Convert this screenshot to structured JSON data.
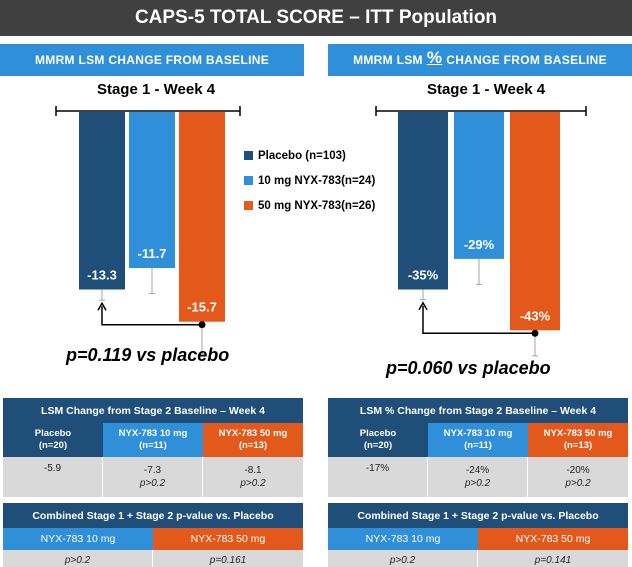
{
  "title": "CAPS-5 TOTAL SCORE – ITT Population",
  "left_header": "MMRM LSM CHANGE FROM BASELINE",
  "right_header": {
    "prefix": "MMRM LSM",
    "pct": "%",
    "suffix": "CHANGE FROM BASELINE"
  },
  "legend": [
    {
      "label": "Placebo (n=103)",
      "color": "#1f4e79"
    },
    {
      "label": "10 mg NYX-783(n=24)",
      "color": "#2f8fd8"
    },
    {
      "label": "50 mg NYX-783(n=26)",
      "color": "#e3581b"
    }
  ],
  "colors": {
    "placebo": "#1f4e79",
    "dose10": "#2f8fd8",
    "dose50": "#e3581b",
    "error": "#a6a6a6"
  },
  "chart_data": [
    {
      "type": "bar",
      "title": "Stage 1 - Week 4",
      "categories": [
        "Placebo (n=103)",
        "10 mg NYX-783(n=24)",
        "50 mg NYX-783(n=26)"
      ],
      "values": [
        -13.3,
        -11.7,
        -15.7
      ],
      "value_labels": [
        "-13.3",
        "-11.7",
        "-15.7"
      ],
      "error_high": [
        -14.1,
        -13.6,
        -18.1
      ],
      "ylim": [
        -19,
        0
      ],
      "annotation": "p=0.119 vs placebo"
    },
    {
      "type": "bar",
      "title": "Stage 1 - Week 4",
      "categories": [
        "Placebo (n=103)",
        "10 mg NYX-783(n=24)",
        "50 mg NYX-783(n=26)"
      ],
      "values": [
        -35,
        -29,
        -43
      ],
      "value_labels": [
        "-35%",
        "-29%",
        "-43%"
      ],
      "error_high": [
        -37,
        -34,
        -48
      ],
      "ylim": [
        -50,
        0
      ],
      "annotation": "p=0.060 vs placebo"
    }
  ],
  "left_table": {
    "title": "LSM Change from Stage 2 Baseline – Week 4",
    "columns": [
      {
        "name": "Placebo",
        "n": "(n=20)",
        "value": "-5.9",
        "p": ""
      },
      {
        "name": "NYX-783 10 mg",
        "n": "(n=11)",
        "value": "-7.3",
        "p": "p>0.2"
      },
      {
        "name": "NYX-783 50 mg",
        "n": "(n=13)",
        "value": "-8.1",
        "p": "p>0.2"
      }
    ],
    "combined_title": "Combined Stage 1 + Stage 2 p-value vs. Placebo",
    "combined": [
      {
        "name": "NYX-783 10 mg",
        "p": "p>0.2"
      },
      {
        "name": "NYX-783 50 mg",
        "p": "p=0.161"
      }
    ]
  },
  "right_table": {
    "title": "LSM % Change from Stage 2 Baseline – Week 4",
    "columns": [
      {
        "name": "Placebo",
        "n": "(n=20)",
        "value": "-17%",
        "p": ""
      },
      {
        "name": "NYX-783 10 mg",
        "n": "(n=11)",
        "value": "-24%",
        "p": "p>0.2"
      },
      {
        "name": "NYX-783 50 mg",
        "n": "(n=13)",
        "value": "-20%",
        "p": "p>0.2"
      }
    ],
    "combined_title": "Combined Stage 1 + Stage 2 p-value vs. Placebo",
    "combined": [
      {
        "name": "NYX-783 10 mg",
        "p": "p>0.2"
      },
      {
        "name": "NYX-783 50 mg",
        "p": "p=0.141"
      }
    ]
  }
}
